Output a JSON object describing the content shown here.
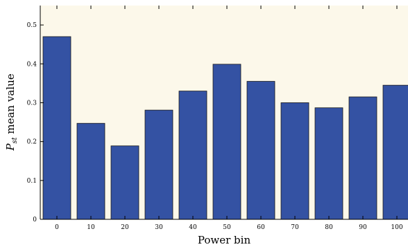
{
  "chart_data": {
    "type": "bar",
    "categories": [
      "0",
      "10",
      "20",
      "30",
      "40",
      "50",
      "60",
      "70",
      "80",
      "90",
      "100"
    ],
    "values": [
      0.47,
      0.247,
      0.189,
      0.281,
      0.33,
      0.399,
      0.355,
      0.3,
      0.287,
      0.315,
      0.345
    ],
    "xlabel": "Power bin",
    "ylabel": {
      "main": "P",
      "subscript": "st",
      "suffix": " mean value"
    },
    "ylim": [
      0,
      0.55
    ],
    "yticks": [
      "0",
      "0.1",
      "0.2",
      "0.3",
      "0.4",
      "0.5"
    ],
    "ytick_values": [
      0,
      0.1,
      0.2,
      0.3,
      0.4,
      0.5
    ],
    "grid": false,
    "colors": {
      "bar": "#3452a3",
      "bar_edge": "#1a1a1a",
      "plot_background": "#fcf8ea",
      "axis": "#000000"
    }
  }
}
